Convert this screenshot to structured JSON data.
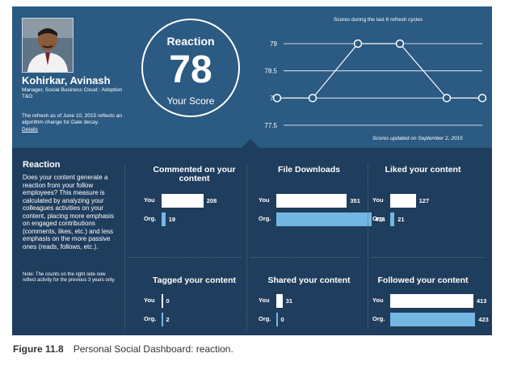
{
  "profile": {
    "name": "Kohirkar, Avinash",
    "role": "Manager, Social Business Cloud : Adoption T&O",
    "refresh_note": "The refresh as of June 10, 2015 reflects an algorithm change for Date decay.",
    "details_link": "Details"
  },
  "score": {
    "label": "Reaction",
    "value": "78",
    "sub": "Your Score"
  },
  "trend": {
    "title": "Scores during the last 6 refresh cycles",
    "updated": "Scores updated on September 2, 2015",
    "y_ticks": [
      "79",
      "78.5",
      "78",
      "77.5"
    ],
    "values": [
      78,
      78,
      79,
      79,
      78,
      78
    ]
  },
  "reaction": {
    "title": "Reaction",
    "description": "Does your content generate a reaction from your follow employees? This measure is calculated by analyzing your colleagues activities on your content, placing more emphasis on engaged contributions (comments, likes, etc.) and less emphasis on the more passive ones (reads, follows, etc.).",
    "note": "Note: The counts on the right side now reflect activity for the previous 3 years only."
  },
  "row_labels": {
    "you": "You",
    "org": "Org."
  },
  "metrics": [
    {
      "title": "Commented on your content",
      "you": 208,
      "org": 19
    },
    {
      "title": "File Downloads",
      "you": 351,
      "org": 474
    },
    {
      "title": "Liked your content",
      "you": 127,
      "org": 21
    },
    {
      "title": "Tagged your content",
      "you": 0,
      "org": 2
    },
    {
      "title": "Shared your content",
      "you": 31,
      "org": 0
    },
    {
      "title": "Followed your content",
      "you": 413,
      "org": 423
    }
  ],
  "colors": {
    "panel_top": "#2b5a82",
    "panel_bottom": "#1f3d5d",
    "you_bar": "#ffffff",
    "org_bar": "#74b7e2"
  },
  "caption": {
    "label": "Figure 11.8",
    "text": "Personal Social Dashboard: reaction."
  }
}
